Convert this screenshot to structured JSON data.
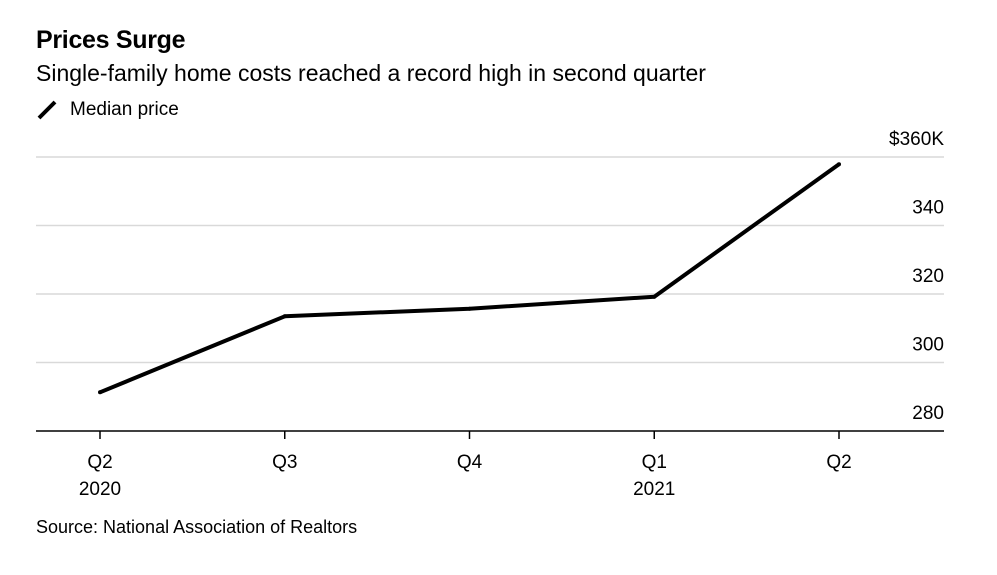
{
  "header": {
    "title": "Prices Surge",
    "subtitle": "Single-family home costs reached a record high in second quarter"
  },
  "legend": {
    "label": "Median price",
    "color": "#000000"
  },
  "footer": {
    "source": "Source: National Association of Realtors"
  },
  "chart_data": {
    "type": "line",
    "x": [
      "Q2 2020",
      "Q3 2020",
      "Q4 2020",
      "Q1 2021",
      "Q2 2021"
    ],
    "x_tick_labels": [
      {
        "line1": "Q2",
        "line2": "2020"
      },
      {
        "line1": "Q3",
        "line2": ""
      },
      {
        "line1": "Q4",
        "line2": ""
      },
      {
        "line1": "Q1",
        "line2": "2021"
      },
      {
        "line1": "Q2",
        "line2": ""
      }
    ],
    "series": [
      {
        "name": "Median price",
        "color": "#000000",
        "values": [
          291.3,
          313.5,
          315.7,
          319.2,
          357.9
        ]
      }
    ],
    "ylim": [
      280,
      360
    ],
    "y_ticks": [
      280,
      300,
      320,
      340,
      360
    ],
    "y_tick_labels": [
      "280",
      "300",
      "320",
      "340",
      "$360K"
    ],
    "y_axis_side": "right",
    "grid": true,
    "legend_position": "top-left"
  }
}
